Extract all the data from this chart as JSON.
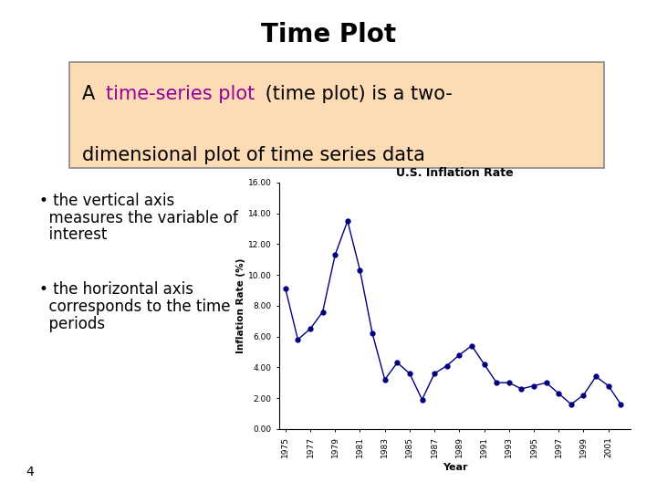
{
  "title": "Time Plot",
  "box_bg_color": "#FDDCB5",
  "box_border_color": "#888888",
  "colored_text_color": "#990099",
  "bullet1_line1": "• the vertical axis",
  "bullet1_line2": "  measures the variable of",
  "bullet1_line3": "  interest",
  "bullet2_line1": "• the horizontal axis",
  "bullet2_line2": "  corresponds to the time",
  "bullet2_line3": "  periods",
  "footnote": "4",
  "chart_title": "U.S. Inflation Rate",
  "xlabel": "Year",
  "ylabel": "Inflation Rate (%)",
  "years": [
    1975,
    1976,
    1977,
    1978,
    1979,
    1980,
    1981,
    1982,
    1983,
    1984,
    1985,
    1986,
    1987,
    1988,
    1989,
    1990,
    1991,
    1992,
    1993,
    1994,
    1995,
    1996,
    1997,
    1998,
    1999,
    2000,
    2001,
    2002
  ],
  "inflation": [
    9.1,
    5.8,
    6.5,
    7.6,
    11.3,
    13.5,
    10.3,
    6.2,
    3.2,
    4.3,
    3.6,
    1.9,
    3.6,
    4.1,
    4.8,
    5.4,
    4.2,
    3.0,
    3.0,
    2.6,
    2.8,
    3.0,
    2.3,
    1.6,
    2.2,
    3.4,
    2.8,
    1.6
  ],
  "line_color": "#000080",
  "marker_color": "#000080",
  "yticks": [
    0.0,
    2.0,
    4.0,
    6.0,
    8.0,
    10.0,
    12.0,
    14.0,
    16.0
  ],
  "xtick_years": [
    1975,
    1977,
    1979,
    1981,
    1983,
    1985,
    1987,
    1989,
    1991,
    1993,
    1995,
    1997,
    1999,
    2001
  ],
  "bg_color": "#FFFFFF"
}
